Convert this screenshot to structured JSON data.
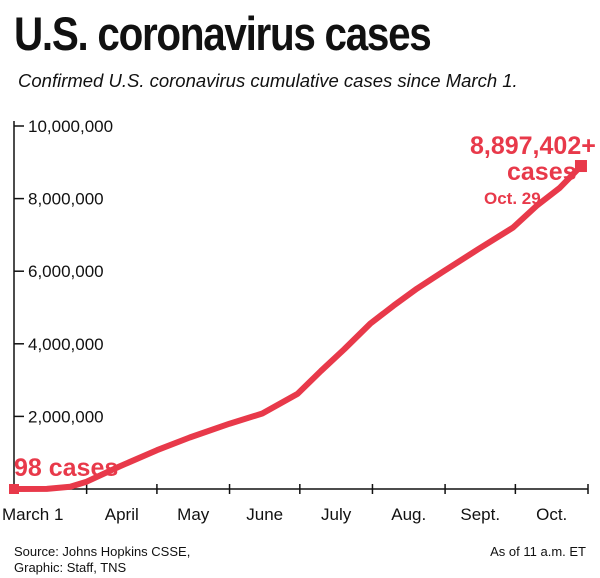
{
  "title": "U.S. coronavirus cases",
  "subtitle": "Confirmed U.S. coronavirus cumulative cases since March 1.",
  "source_line1": "Source: Johns Hopkins CSSE,",
  "source_line2": "Graphic: Staff, TNS",
  "as_of": "As of 11 a.m. ET",
  "colors": {
    "line": "#e8394a",
    "axis": "#111111"
  },
  "chart_data": {
    "type": "line",
    "title": "U.S. coronavirus cases",
    "xlabel": "",
    "ylabel": "",
    "x_tick_labels": [
      "March 1",
      "April",
      "May",
      "June",
      "July",
      "Aug.",
      "Sept.",
      "Oct."
    ],
    "y_tick_labels": [
      "2,000,000",
      "4,000,000",
      "6,000,000",
      "8,000,000",
      "10,000,000"
    ],
    "y_ticks": [
      2000000,
      4000000,
      6000000,
      8000000,
      10000000
    ],
    "ylim": [
      0,
      10000000
    ],
    "grid": false,
    "series": [
      {
        "x": [
          "2020-03-01",
          "2020-03-15",
          "2020-03-25",
          "2020-04-01",
          "2020-04-15",
          "2020-05-01",
          "2020-05-15",
          "2020-06-01",
          "2020-06-15",
          "2020-06-30",
          "2020-07-10",
          "2020-07-20",
          "2020-07-31",
          "2020-08-10",
          "2020-08-20",
          "2020-08-31",
          "2020-09-15",
          "2020-09-30",
          "2020-10-10",
          "2020-10-20",
          "2020-10-29"
        ],
        "values": [
          98,
          3000,
          60000,
          200000,
          620000,
          1070000,
          1420000,
          1800000,
          2080000,
          2620000,
          3250000,
          3850000,
          4550000,
          5050000,
          5520000,
          5980000,
          6600000,
          7200000,
          7800000,
          8300000,
          8897402
        ]
      }
    ],
    "annotations": {
      "start_label": "98 cases",
      "end_value": "8,897,402+",
      "end_unit": "cases",
      "end_date": "Oct. 29"
    }
  }
}
